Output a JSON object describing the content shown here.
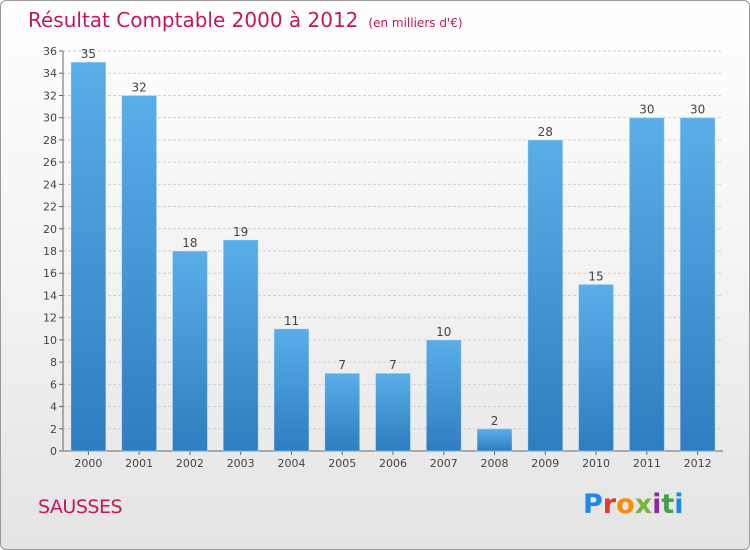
{
  "header": {
    "title": "Résultat Comptable 2000 à 2012",
    "unit": "(en milliers d'€)"
  },
  "footer": {
    "commune": "SAUSSES",
    "logo_text": "Proxiti",
    "logo_colors": [
      "#1e88e5",
      "#e53935",
      "#fb8c00",
      "#7cb342",
      "#8e24aa",
      "#43a047",
      "#1e88e5"
    ]
  },
  "chart_data": {
    "type": "bar",
    "title": "Résultat Comptable 2000 à 2012",
    "subtitle": "(en milliers d'€)",
    "categories": [
      "2000",
      "2001",
      "2002",
      "2003",
      "2004",
      "2005",
      "2006",
      "2007",
      "2008",
      "2009",
      "2010",
      "2011",
      "2012"
    ],
    "values": [
      35,
      32,
      18,
      19,
      11,
      7,
      7,
      10,
      2,
      28,
      15,
      30,
      30
    ],
    "ylim": [
      0,
      36
    ],
    "yticks": [
      0,
      2,
      4,
      6,
      8,
      10,
      12,
      14,
      16,
      18,
      20,
      22,
      24,
      26,
      28,
      30,
      32,
      34,
      36
    ],
    "grid": true,
    "bar_color_top": "#5aaee8",
    "bar_color_bottom": "#2e7dc0",
    "legend": false
  }
}
